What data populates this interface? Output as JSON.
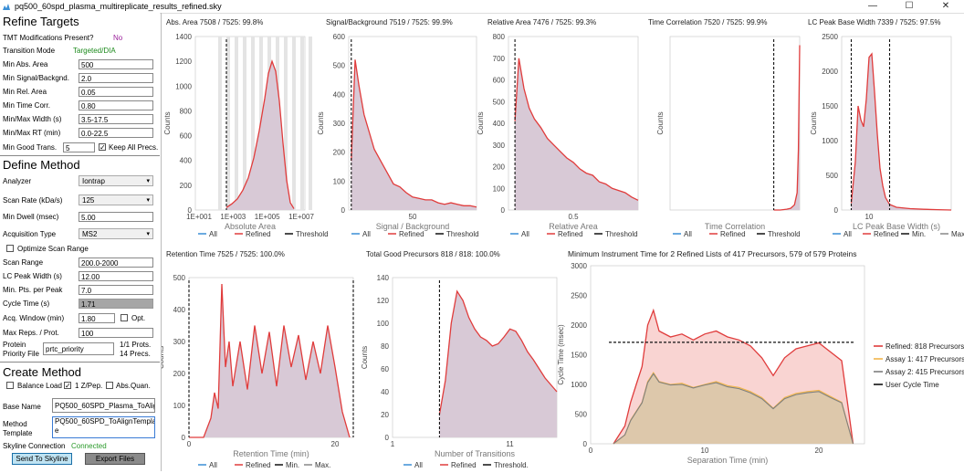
{
  "window": {
    "title": "pq500_60spd_plasma_multireplicate_results_refined.sky",
    "minimize": "—",
    "maximize": "☐",
    "close": "✕"
  },
  "refine": {
    "title": "Refine Targets",
    "tmt_label": "TMT Modifications Present?",
    "tmt_value": "No",
    "mode_label": "Transition Mode",
    "mode_value": "Targeted/DIA",
    "rows": [
      {
        "label": "Min Abs. Area",
        "value": "500"
      },
      {
        "label": "Min Signal/Backgnd.",
        "value": "2.0"
      },
      {
        "label": "Min Rel. Area",
        "value": "0.05"
      },
      {
        "label": "Min Time Corr.",
        "value": "0.80"
      },
      {
        "label": "Min/Max Width (s)",
        "value": "3.5-17.5"
      },
      {
        "label": "Min/Max RT (min)",
        "value": "0.0-22.5"
      }
    ],
    "min_good_label": "Min Good Trans.",
    "min_good_value": "5",
    "keep_all_label": "Keep All Precs."
  },
  "method": {
    "title": "Define Method",
    "analyzer_label": "Analyzer",
    "analyzer_value": "Iontrap",
    "scan_rate_label": "Scan Rate (kDa/s)",
    "scan_rate_value": "125",
    "min_dwell_label": "Min Dwell (msec)",
    "min_dwell_value": "5.00",
    "acq_type_label": "Acquisition Type",
    "acq_type_value": "MS2",
    "optimize_label": "Optimize Scan Range",
    "scan_range_label": "Scan Range",
    "scan_range_value": "200.0-2000",
    "lc_width_label": "LC Peak Width (s)",
    "lc_width_value": "12.00",
    "min_pts_label": "Min. Pts. per Peak",
    "min_pts_value": "7.0",
    "cycle_label": "Cycle Time (s)",
    "cycle_value": "1.71",
    "acq_window_label": "Acq. Window (min)",
    "acq_window_value": "1.80",
    "opt_label": "Opt.",
    "max_reps_label": "Max Reps. / Prot.",
    "max_reps_value": "100",
    "priority_label_1": "Protein",
    "priority_label_2": "Priority File",
    "priority_value": "prtc_priority",
    "prots": "1/1 Prots.",
    "precs": "14 Precs."
  },
  "create": {
    "title": "Create Method",
    "balance_label": "Balance Load",
    "z_label": "1 Z/Pep.",
    "absquan_label": "Abs.Quan.",
    "base_name_label": "Base Name",
    "base_name_value": "PQ500_60SPD_Plasma_ToAlign",
    "template_label_1": "Method",
    "template_label_2": "Template",
    "template_value_1": "PQ500_60SPD_ToAlignTemplat",
    "template_value_2": "e",
    "skyline_label": "Skyline Connection",
    "skyline_value": "Connected",
    "send_button": "Send To Skyline",
    "export_button": "Export Files"
  },
  "colors": {
    "refined": "#e03c3c",
    "fill": "#d8c9d6",
    "all": "#3a8fd6",
    "assay1": "#f2b64b",
    "assay2": "#7f7f7f",
    "tmt_no": "#9a1f9a",
    "connected": "#2a9a2a",
    "mode": "#1c8a1c"
  },
  "charts": [
    {
      "title": "Abs. Area 7508 / 7525: 99.8%",
      "ylabel": "Counts",
      "xlabel": "Absolute Area",
      "yticks": [
        "0",
        "200",
        "400",
        "600",
        "800",
        "1000",
        "1200",
        "1400"
      ],
      "xticks": [
        "1E+001",
        "1E+003",
        "1E+005",
        "1E+007"
      ],
      "legend": [
        "All",
        "Refined",
        "Threshold"
      ]
    },
    {
      "title": "Signal/Background 7519 / 7525: 99.9%",
      "ylabel": "Counts",
      "xlabel": "Signal / Background",
      "yticks": [
        "0",
        "100",
        "200",
        "300",
        "400",
        "500",
        "600"
      ],
      "xticks": [
        "50"
      ],
      "legend": [
        "All",
        "Refined",
        "Threshold"
      ]
    },
    {
      "title": "Relative Area 7476 / 7525: 99.3%",
      "ylabel": "Counts",
      "xlabel": "Relative Area",
      "yticks": [
        "0",
        "100",
        "200",
        "300",
        "400",
        "500",
        "600",
        "700",
        "800"
      ],
      "xticks": [
        "0.5"
      ],
      "legend": [
        "All",
        "Refined",
        "Threshold"
      ]
    },
    {
      "title": "Time Correlation 7520 / 7525: 99.9%",
      "ylabel": "Counts",
      "xlabel": "Time Correlation",
      "yticks": [],
      "xticks": [],
      "legend": [
        "All",
        "Refined",
        "Threshold"
      ]
    },
    {
      "title": "LC Peak Base Width 7339 / 7525: 97.5%",
      "ylabel": "Counts",
      "xlabel": "LC Peak Base Width (s)",
      "yticks": [
        "0",
        "500",
        "1000",
        "1500",
        "2000",
        "2500"
      ],
      "xticks": [
        "10"
      ],
      "legend": [
        "All",
        "Refined",
        "Min.",
        "Max."
      ]
    },
    {
      "title": "Retention Time 7525 / 7525: 100.0%",
      "ylabel": "Counts",
      "xlabel": "Retention Time (min)",
      "yticks": [
        "0",
        "100",
        "200",
        "300",
        "400",
        "500"
      ],
      "xticks": [
        "0",
        "20"
      ],
      "legend": [
        "All",
        "Refined",
        "Min.",
        "Max."
      ]
    },
    {
      "title": "Total Good Precursors 818 / 818: 100.0%",
      "ylabel": "Counts",
      "xlabel": "Number of Transitions",
      "yticks": [
        "0",
        "20",
        "40",
        "60",
        "80",
        "100",
        "120",
        "140"
      ],
      "xticks": [
        "1",
        "11"
      ],
      "legend": [
        "All",
        "Refined",
        "Threshold."
      ]
    }
  ],
  "cycle_chart": {
    "title": "Minimum Instrument Time for 2 Refined Lists of 417 Precursors, 579 of 579 Proteins",
    "ylabel": "Cycle Time (msec)",
    "xlabel": "Separation Time (min)",
    "yticks": [
      "0",
      "500",
      "1000",
      "1500",
      "2000",
      "2500",
      "3000"
    ],
    "xticks": [
      "0",
      "10",
      "20"
    ],
    "legend": [
      "Refined: 818 Precursors",
      "Assay 1: 417 Precursors",
      "Assay 2: 415 Precursors",
      "User Cycle Time"
    ]
  },
  "chart_data": [
    {
      "type": "line",
      "title": "Abs. Area 7508 / 7525: 99.8%",
      "xlabel": "Absolute Area",
      "ylabel": "Counts",
      "x_scale": "log10",
      "xlim": [
        1,
        7
      ],
      "ylim": [
        0,
        1400
      ],
      "threshold": 2.7,
      "series": [
        {
          "name": "Refined",
          "x": [
            2.7,
            3.0,
            3.3,
            3.6,
            3.9,
            4.2,
            4.5,
            4.8,
            5.0,
            5.2,
            5.4,
            5.6,
            5.8,
            6.0,
            6.2,
            6.4
          ],
          "y": [
            20,
            50,
            90,
            160,
            260,
            420,
            640,
            900,
            1100,
            1200,
            1120,
            880,
            540,
            240,
            60,
            10
          ]
        }
      ]
    },
    {
      "type": "line",
      "title": "Signal/Background 7519 / 7525: 99.9%",
      "xlabel": "Signal / Background",
      "ylabel": "Counts",
      "xlim": [
        0,
        100
      ],
      "ylim": [
        0,
        600
      ],
      "threshold": 2,
      "series": [
        {
          "name": "Refined",
          "x": [
            2,
            5,
            8,
            12,
            16,
            20,
            25,
            30,
            35,
            40,
            45,
            50,
            55,
            60,
            65,
            70,
            75,
            80,
            85,
            90,
            95,
            100
          ],
          "y": [
            170,
            520,
            430,
            330,
            270,
            210,
            170,
            130,
            90,
            80,
            60,
            45,
            40,
            35,
            35,
            25,
            20,
            25,
            20,
            15,
            15,
            10
          ]
        }
      ]
    },
    {
      "type": "line",
      "title": "Relative Area 7476 / 7525: 99.3%",
      "xlabel": "Relative Area",
      "ylabel": "Counts",
      "xlim": [
        0,
        1
      ],
      "ylim": [
        0,
        800
      ],
      "threshold": 0.05,
      "series": [
        {
          "name": "Refined",
          "x": [
            0.05,
            0.08,
            0.12,
            0.16,
            0.2,
            0.25,
            0.3,
            0.35,
            0.4,
            0.45,
            0.5,
            0.55,
            0.6,
            0.65,
            0.7,
            0.75,
            0.8,
            0.85,
            0.9,
            0.95,
            1.0
          ],
          "y": [
            410,
            700,
            560,
            470,
            420,
            380,
            330,
            300,
            270,
            240,
            220,
            190,
            170,
            160,
            130,
            120,
            100,
            90,
            80,
            60,
            45
          ]
        }
      ]
    },
    {
      "type": "line",
      "title": "Time Correlation 7520 / 7525: 99.9%",
      "xlabel": "Time Correlation",
      "ylabel": "Counts",
      "xlim": [
        0,
        1
      ],
      "ylim": [
        0,
        1
      ],
      "threshold": 0.8,
      "series": [
        {
          "name": "Refined",
          "x": [
            0.8,
            0.85,
            0.9,
            0.93,
            0.96,
            0.98,
            0.99,
            1.0
          ],
          "y": [
            0.0,
            0.0,
            0.005,
            0.01,
            0.03,
            0.1,
            0.35,
            0.95
          ]
        }
      ]
    },
    {
      "type": "line",
      "title": "LC Peak Base Width 7339 / 7525: 97.5%",
      "xlabel": "LC Peak Base Width (s)",
      "ylabel": "Counts",
      "xlim": [
        0,
        40
      ],
      "ylim": [
        0,
        2500
      ],
      "min": 3.5,
      "max": 17.5,
      "series": [
        {
          "name": "Refined",
          "x": [
            3.5,
            5,
            6,
            7,
            8,
            9,
            10,
            11,
            12,
            13,
            14,
            15,
            16,
            17.5,
            20,
            25,
            30,
            35,
            40
          ],
          "y": [
            100,
            700,
            1500,
            1300,
            1200,
            1600,
            2200,
            2250,
            1700,
            1100,
            600,
            350,
            180,
            80,
            40,
            20,
            10,
            5,
            0
          ]
        }
      ]
    },
    {
      "type": "line",
      "title": "Retention Time 7525 / 7525: 100.0%",
      "xlabel": "Retention Time (min)",
      "ylabel": "Counts",
      "xlim": [
        0,
        22.5
      ],
      "ylim": [
        0,
        500
      ],
      "min": 0.0,
      "max": 22.5,
      "series": [
        {
          "name": "Refined",
          "x": [
            0,
            2,
            3,
            3.5,
            4,
            4.5,
            5,
            5.5,
            6,
            7,
            8,
            9,
            10,
            11,
            12,
            13,
            14,
            15,
            16,
            17,
            18,
            19,
            20,
            21,
            22
          ],
          "y": [
            0,
            0,
            60,
            140,
            90,
            480,
            220,
            300,
            160,
            300,
            150,
            350,
            200,
            330,
            160,
            350,
            220,
            320,
            180,
            300,
            200,
            350,
            220,
            80,
            0
          ]
        }
      ]
    },
    {
      "type": "line",
      "title": "Total Good Precursors 818 / 818: 100.0%",
      "xlabel": "Number of Transitions",
      "ylabel": "Counts",
      "xlim": [
        1,
        15
      ],
      "ylim": [
        0,
        140
      ],
      "threshold": 5,
      "series": [
        {
          "name": "Refined",
          "x": [
            5,
            5.5,
            6,
            6.5,
            7,
            7.5,
            8,
            8.5,
            9,
            9.5,
            10,
            10.5,
            11,
            11.5,
            12,
            12.5,
            13,
            13.5,
            14,
            15
          ],
          "y": [
            20,
            50,
            100,
            128,
            120,
            105,
            95,
            88,
            85,
            80,
            82,
            88,
            95,
            93,
            85,
            75,
            68,
            60,
            52,
            40
          ]
        }
      ]
    },
    {
      "type": "line",
      "title": "Minimum Instrument Time for 2 Refined Lists of 417 Precursors, 579 of 579 Proteins",
      "xlabel": "Separation Time (min)",
      "ylabel": "Cycle Time (msec)",
      "xlim": [
        0,
        24
      ],
      "ylim": [
        0,
        3000
      ],
      "user_cycle_time": 1710,
      "x": [
        2,
        3,
        3.5,
        4,
        4.5,
        5,
        5.5,
        6,
        7,
        8,
        9,
        10,
        11,
        12,
        13,
        14,
        15,
        16,
        17,
        18,
        19,
        20,
        21,
        22,
        22.5,
        23
      ],
      "series": [
        {
          "name": "Refined: 818 Precursors",
          "values": [
            0,
            300,
            700,
            1000,
            1300,
            2000,
            2250,
            1900,
            1800,
            1850,
            1750,
            1850,
            1900,
            1800,
            1750,
            1650,
            1450,
            1150,
            1450,
            1600,
            1650,
            1700,
            1550,
            1400,
            700,
            0
          ]
        },
        {
          "name": "Assay 1: 417 Precursors",
          "values": [
            0,
            150,
            400,
            550,
            700,
            1050,
            1200,
            1050,
            1000,
            1020,
            950,
            1000,
            1050,
            980,
            950,
            880,
            780,
            600,
            780,
            850,
            880,
            900,
            800,
            700,
            350,
            0
          ]
        },
        {
          "name": "Assay 2: 415 Precursors",
          "values": [
            0,
            150,
            390,
            540,
            690,
            1030,
            1180,
            1040,
            990,
            1000,
            940,
            990,
            1030,
            960,
            930,
            860,
            760,
            590,
            760,
            830,
            860,
            880,
            780,
            690,
            340,
            0
          ]
        }
      ]
    }
  ]
}
